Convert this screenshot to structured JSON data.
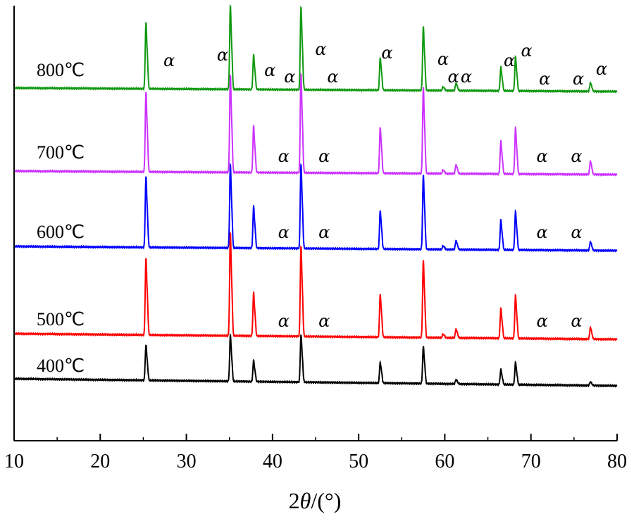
{
  "chart_data": {
    "type": "line",
    "xlabel_prefix": "2",
    "xlabel_theta": "θ",
    "xlabel_suffix": "/(°)",
    "xlim": [
      10,
      80
    ],
    "x_ticks": [
      "10",
      "20",
      "30",
      "40",
      "50",
      "60",
      "70",
      "80"
    ],
    "y_ticks_shown": false,
    "grid": false,
    "legend": "none",
    "peak_marker": "α",
    "series": [
      {
        "name": "400℃",
        "color": "#000000",
        "baseline": [
          0.1,
          0.0
        ],
        "peaks": [
          {
            "x": 25.3,
            "h": 0.48
          },
          {
            "x": 35.1,
            "h": 0.62
          },
          {
            "x": 37.8,
            "h": 0.28
          },
          {
            "x": 43.3,
            "h": 0.64
          },
          {
            "x": 52.5,
            "h": 0.28
          },
          {
            "x": 57.5,
            "h": 0.5
          },
          {
            "x": 61.3,
            "h": 0.06
          },
          {
            "x": 66.5,
            "h": 0.2
          },
          {
            "x": 68.2,
            "h": 0.3
          },
          {
            "x": 76.9,
            "h": 0.05
          }
        ],
        "alpha_labels": []
      },
      {
        "name": "500℃",
        "color": "#ff0000",
        "baseline": [
          0.08,
          0.0
        ],
        "peaks": [
          {
            "x": 25.3,
            "h": 1.04
          },
          {
            "x": 35.1,
            "h": 1.38
          },
          {
            "x": 37.8,
            "h": 0.58
          },
          {
            "x": 43.3,
            "h": 1.22
          },
          {
            "x": 52.5,
            "h": 0.58
          },
          {
            "x": 57.5,
            "h": 1.04
          },
          {
            "x": 59.8,
            "h": 0.05
          },
          {
            "x": 61.3,
            "h": 0.12
          },
          {
            "x": 66.5,
            "h": 0.4
          },
          {
            "x": 68.2,
            "h": 0.58
          },
          {
            "x": 76.9,
            "h": 0.16
          }
        ],
        "alpha_labels": [
          {
            "x": 41.3
          },
          {
            "x": 46.0
          },
          {
            "x": 71.3
          },
          {
            "x": 75.3
          }
        ]
      },
      {
        "name": "600℃",
        "color": "#0000ff",
        "baseline": [
          0.06,
          0.0
        ],
        "peaks": [
          {
            "x": 25.3,
            "h": 0.96
          },
          {
            "x": 35.1,
            "h": 1.12
          },
          {
            "x": 37.8,
            "h": 0.56
          },
          {
            "x": 43.3,
            "h": 1.14
          },
          {
            "x": 52.5,
            "h": 0.52
          },
          {
            "x": 57.5,
            "h": 1.0
          },
          {
            "x": 59.8,
            "h": 0.05
          },
          {
            "x": 61.3,
            "h": 0.12
          },
          {
            "x": 66.5,
            "h": 0.4
          },
          {
            "x": 68.2,
            "h": 0.52
          },
          {
            "x": 76.9,
            "h": 0.12
          }
        ],
        "alpha_labels": [
          {
            "x": 41.3
          },
          {
            "x": 46.0
          },
          {
            "x": 71.3
          },
          {
            "x": 75.3
          }
        ]
      },
      {
        "name": "700℃",
        "color": "#cc33ff",
        "baseline": [
          0.05,
          0.0
        ],
        "peaks": [
          {
            "x": 25.3,
            "h": 1.08
          },
          {
            "x": 35.1,
            "h": 1.3
          },
          {
            "x": 37.8,
            "h": 0.62
          },
          {
            "x": 43.3,
            "h": 1.34
          },
          {
            "x": 52.5,
            "h": 0.62
          },
          {
            "x": 57.5,
            "h": 1.16
          },
          {
            "x": 59.8,
            "h": 0.05
          },
          {
            "x": 61.3,
            "h": 0.12
          },
          {
            "x": 66.5,
            "h": 0.44
          },
          {
            "x": 68.2,
            "h": 0.62
          },
          {
            "x": 76.9,
            "h": 0.18
          }
        ],
        "alpha_labels": [
          {
            "x": 41.3
          },
          {
            "x": 46.0
          },
          {
            "x": 71.3
          },
          {
            "x": 75.3
          }
        ]
      },
      {
        "name": "800℃",
        "color": "#119911",
        "baseline": [
          0.05,
          0.0
        ],
        "peaks": [
          {
            "x": 25.3,
            "h": 0.9
          },
          {
            "x": 35.1,
            "h": 1.12
          },
          {
            "x": 37.8,
            "h": 0.46
          },
          {
            "x": 43.3,
            "h": 1.12
          },
          {
            "x": 52.5,
            "h": 0.44
          },
          {
            "x": 57.5,
            "h": 0.86
          },
          {
            "x": 59.8,
            "h": 0.05
          },
          {
            "x": 61.3,
            "h": 0.1
          },
          {
            "x": 66.5,
            "h": 0.32
          },
          {
            "x": 68.2,
            "h": 0.46
          },
          {
            "x": 76.9,
            "h": 0.12
          }
        ],
        "alpha_labels": [
          {
            "x": 28.0,
            "dy": 36
          },
          {
            "x": 34.2,
            "dy": 44
          },
          {
            "x": 39.7,
            "dy": 22
          },
          {
            "x": 42.0,
            "dy": 13
          },
          {
            "x": 45.6,
            "dy": 52
          },
          {
            "x": 47.0,
            "dy": 13
          },
          {
            "x": 53.3,
            "dy": 47
          },
          {
            "x": 59.8,
            "dy": 38
          },
          {
            "x": 61.0,
            "dy": 13
          },
          {
            "x": 62.5,
            "dy": 13
          },
          {
            "x": 67.5,
            "dy": 36
          },
          {
            "x": 69.5,
            "dy": 50
          },
          {
            "x": 71.6,
            "dy": 10
          },
          {
            "x": 75.5,
            "dy": 10
          },
          {
            "x": 78.2,
            "dy": 24
          }
        ]
      }
    ]
  }
}
